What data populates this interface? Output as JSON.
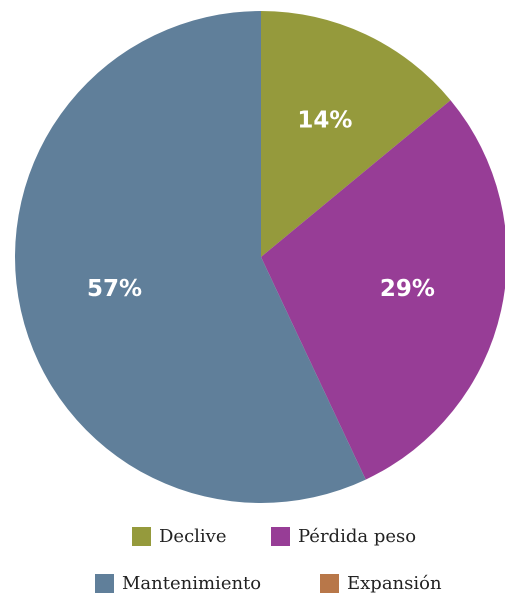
{
  "chart_data": {
    "type": "pie",
    "slices": [
      {
        "label": "Declive",
        "value": 14,
        "display": "14%",
        "color": "#959a3c"
      },
      {
        "label": "Pérdida peso",
        "value": 29,
        "display": "29%",
        "color": "#973d96"
      },
      {
        "label": "Mantenimiento",
        "value": 57,
        "display": "57%",
        "color": "#607f9a"
      },
      {
        "label": "Expansión",
        "value": 0,
        "display": "",
        "color": "#b87749"
      }
    ],
    "start_angle_deg": 0,
    "direction": "clockwise",
    "legend_position": "bottom"
  }
}
